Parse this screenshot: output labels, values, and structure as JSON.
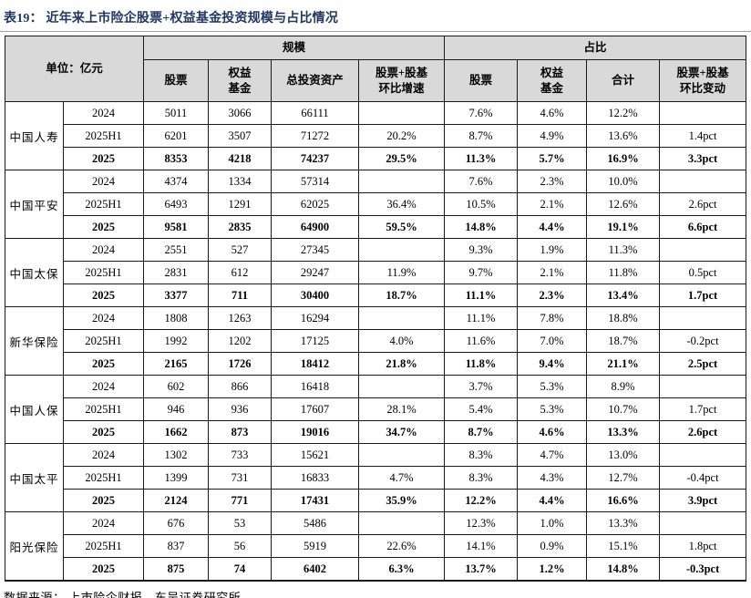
{
  "title": "表19：  近年来上市险企股票+权益基金投资规模与占比情况",
  "source_note": "数据来源：  上市险企财报，东吴证券研究所",
  "colors": {
    "title_text": "#1F3864",
    "header_background": "#D9D9D9",
    "table_border": "#1a1a1a",
    "body_background": "#ffffff"
  },
  "table": {
    "unit_label": "单位：亿元",
    "scale_header": "规模",
    "proportion_header": "占比",
    "columns": [
      "股票",
      "权益\n基金",
      "总投资资产",
      "股票+股基\n环比增速",
      "股票",
      "权益\n基金",
      "合计",
      "股票+股基\n环比变动"
    ]
  },
  "companies": [
    {
      "name": "中国人寿",
      "rows": [
        {
          "period": "2024",
          "bold": false,
          "values": [
            "5011",
            "3066",
            "66111",
            "",
            "7.6%",
            "4.6%",
            "12.2%",
            ""
          ]
        },
        {
          "period": "2025H1",
          "bold": false,
          "values": [
            "6201",
            "3507",
            "71272",
            "20.2%",
            "8.7%",
            "4.9%",
            "13.6%",
            "1.4pct"
          ]
        },
        {
          "period": "2025",
          "bold": true,
          "values": [
            "8353",
            "4218",
            "74237",
            "29.5%",
            "11.3%",
            "5.7%",
            "16.9%",
            "3.3pct"
          ]
        }
      ]
    },
    {
      "name": "中国平安",
      "rows": [
        {
          "period": "2024",
          "bold": false,
          "values": [
            "4374",
            "1334",
            "57314",
            "",
            "7.6%",
            "2.3%",
            "10.0%",
            ""
          ]
        },
        {
          "period": "2025H1",
          "bold": false,
          "values": [
            "6493",
            "1291",
            "62025",
            "36.4%",
            "10.5%",
            "2.1%",
            "12.6%",
            "2.6pct"
          ]
        },
        {
          "period": "2025",
          "bold": true,
          "values": [
            "9581",
            "2835",
            "64900",
            "59.5%",
            "14.8%",
            "4.4%",
            "19.1%",
            "6.6pct"
          ]
        }
      ]
    },
    {
      "name": "中国太保",
      "rows": [
        {
          "period": "2024",
          "bold": false,
          "values": [
            "2551",
            "527",
            "27345",
            "",
            "9.3%",
            "1.9%",
            "11.3%",
            ""
          ]
        },
        {
          "period": "2025H1",
          "bold": false,
          "values": [
            "2831",
            "612",
            "29247",
            "11.9%",
            "9.7%",
            "2.1%",
            "11.8%",
            "0.5pct"
          ]
        },
        {
          "period": "2025",
          "bold": true,
          "values": [
            "3377",
            "711",
            "30400",
            "18.7%",
            "11.1%",
            "2.3%",
            "13.4%",
            "1.7pct"
          ]
        }
      ]
    },
    {
      "name": "新华保险",
      "rows": [
        {
          "period": "2024",
          "bold": false,
          "values": [
            "1808",
            "1263",
            "16294",
            "",
            "11.1%",
            "7.8%",
            "18.8%",
            ""
          ]
        },
        {
          "period": "2025H1",
          "bold": false,
          "values": [
            "1992",
            "1202",
            "17125",
            "4.0%",
            "11.6%",
            "7.0%",
            "18.7%",
            "-0.2pct"
          ]
        },
        {
          "period": "2025",
          "bold": true,
          "values": [
            "2165",
            "1726",
            "18412",
            "21.8%",
            "11.8%",
            "9.4%",
            "21.1%",
            "2.5pct"
          ]
        }
      ]
    },
    {
      "name": "中国人保",
      "rows": [
        {
          "period": "2024",
          "bold": false,
          "values": [
            "602",
            "866",
            "16418",
            "",
            "3.7%",
            "5.3%",
            "8.9%",
            ""
          ]
        },
        {
          "period": "2025H1",
          "bold": false,
          "values": [
            "946",
            "936",
            "17607",
            "28.1%",
            "5.4%",
            "5.3%",
            "10.7%",
            "1.7pct"
          ]
        },
        {
          "period": "2025",
          "bold": true,
          "values": [
            "1662",
            "873",
            "19016",
            "34.7%",
            "8.7%",
            "4.6%",
            "13.3%",
            "2.6pct"
          ]
        }
      ]
    },
    {
      "name": "中国太平",
      "rows": [
        {
          "period": "2024",
          "bold": false,
          "values": [
            "1302",
            "733",
            "15621",
            "",
            "8.3%",
            "4.7%",
            "13.0%",
            ""
          ]
        },
        {
          "period": "2025H1",
          "bold": false,
          "values": [
            "1399",
            "731",
            "16833",
            "4.7%",
            "8.3%",
            "4.3%",
            "12.7%",
            "-0.4pct"
          ]
        },
        {
          "period": "2025",
          "bold": true,
          "values": [
            "2124",
            "771",
            "17431",
            "35.9%",
            "12.2%",
            "4.4%",
            "16.6%",
            "3.9pct"
          ]
        }
      ]
    },
    {
      "name": "阳光保险",
      "rows": [
        {
          "period": "2024",
          "bold": false,
          "values": [
            "676",
            "53",
            "5486",
            "",
            "12.3%",
            "1.0%",
            "13.3%",
            ""
          ]
        },
        {
          "period": "2025H1",
          "bold": false,
          "values": [
            "837",
            "56",
            "5919",
            "22.6%",
            "14.1%",
            "0.9%",
            "15.1%",
            "1.8pct"
          ]
        },
        {
          "period": "2025",
          "bold": true,
          "values": [
            "875",
            "74",
            "6402",
            "6.3%",
            "13.7%",
            "1.2%",
            "14.8%",
            "-0.3pct"
          ]
        }
      ]
    }
  ]
}
